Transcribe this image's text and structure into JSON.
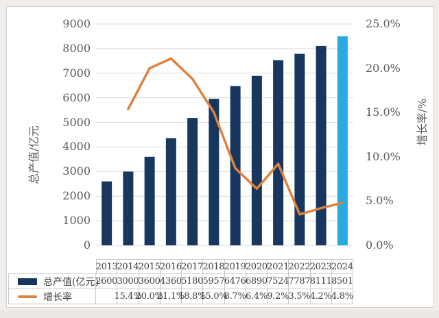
{
  "colors": {
    "bar": "#17375E",
    "bar_highlight": "#29ABE2",
    "line": "#E0813D",
    "grid": "#D9D9D9",
    "table_border": "#C9C9C9",
    "tick_text": "#595959",
    "page_bg": "#F0EDEA",
    "card_bg": "#FFFFFF",
    "card_border": "#D2CFCC"
  },
  "chart_data": {
    "type": "bar+line combo",
    "categories": [
      "2013",
      "2014",
      "2015",
      "2016",
      "2017",
      "2018",
      "2019",
      "2020",
      "2021",
      "2022",
      "2023",
      "2024"
    ],
    "series": [
      {
        "name": "总产值(亿元)",
        "type": "bar",
        "axis": "left",
        "values": [
          2600,
          3000,
          3600,
          4360,
          5180,
          5957,
          6476,
          6890,
          7524,
          7787,
          8111,
          8501
        ],
        "color": "#17375E",
        "highlight_index": 11,
        "highlight_color": "#29ABE2"
      },
      {
        "name": "增长率",
        "type": "line",
        "axis": "right",
        "values": [
          null,
          15.4,
          20.0,
          21.1,
          18.8,
          15.0,
          8.7,
          6.4,
          9.2,
          3.5,
          4.2,
          4.8
        ],
        "color": "#E0813D"
      }
    ],
    "left_axis": {
      "title": "总产值/亿元",
      "min": 0,
      "max": 9000,
      "step": 1000,
      "tick_labels": [
        "9000",
        "8000",
        "7000",
        "6000",
        "5000",
        "4000",
        "3000",
        "2000",
        "1000",
        "0"
      ]
    },
    "right_axis": {
      "title": "增长率/%",
      "min": 0,
      "max": 25,
      "step": 5,
      "tick_labels": [
        "25.0%",
        "20.0%",
        "15.0%",
        "10.0%",
        "5.0%",
        "0.0%"
      ]
    },
    "grid": "horizontal major gridlines only",
    "legend_position": "data-table left column"
  },
  "table": {
    "years_row": [
      "2013",
      "2014",
      "2015",
      "2016",
      "2017",
      "2018",
      "2019",
      "2020",
      "2021",
      "2022",
      "2023",
      "2024"
    ],
    "legend": [
      {
        "label": "总产值(亿元)",
        "swatch": "bar"
      },
      {
        "label": "增长率",
        "swatch": "line"
      }
    ],
    "values_row": [
      "2600",
      "3000",
      "3600",
      "4360",
      "5180",
      "5957",
      "6476",
      "6890",
      "7524",
      "7787",
      "8111",
      "8501"
    ],
    "growth_row": [
      "",
      "15.4%",
      "20.0%",
      "21.1%",
      "18.8%",
      "15.0%",
      "8.7%",
      "6.4%",
      "9.2%",
      "3.5%",
      "4.2%",
      "4.8%"
    ]
  }
}
